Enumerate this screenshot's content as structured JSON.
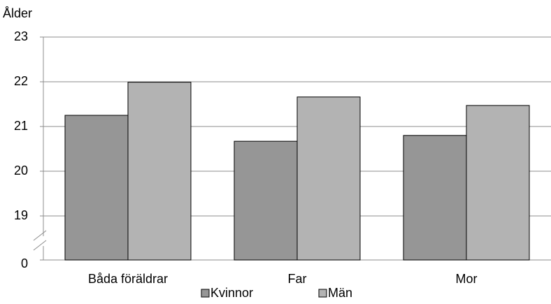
{
  "chart_data": {
    "type": "bar",
    "y_label": "Ålder",
    "categories": [
      "Båda föräldrar",
      "Far",
      "Mor"
    ],
    "series": [
      {
        "name": "Kvinnor",
        "color": "#969696",
        "values": [
          21.25,
          20.67,
          20.8
        ]
      },
      {
        "name": "Män",
        "color": "#b3b3b3",
        "values": [
          21.99,
          21.66,
          21.47
        ]
      }
    ],
    "ylim": [
      0,
      23
    ],
    "yticks": [
      0,
      19,
      20,
      21,
      22,
      23
    ],
    "axis_break": [
      0,
      19
    ],
    "grid": true,
    "legend": "bottom"
  }
}
